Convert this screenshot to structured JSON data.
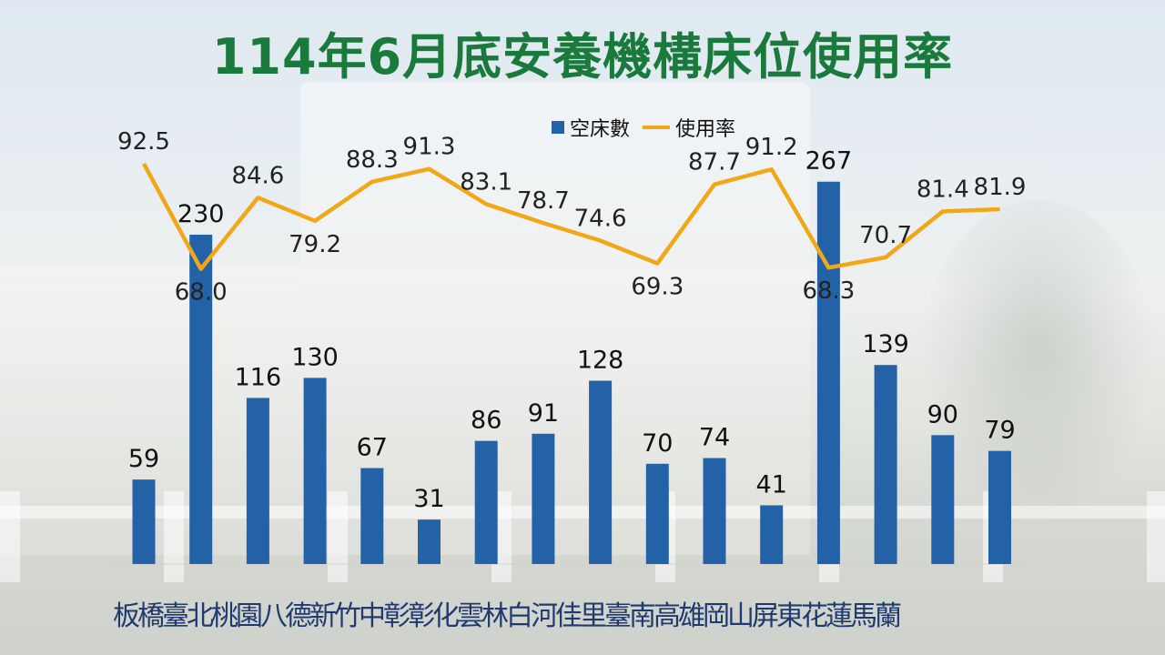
{
  "title": "114年6月底安養機構床位使用率",
  "category_text": "板橋臺北桃園八德新竹中彰彰化雲林白河佳里臺南高雄岡山屏東花蓮馬蘭",
  "chart_data": {
    "type": "bar",
    "categories": [
      "板橋",
      "臺北",
      "桃園",
      "八德",
      "新竹",
      "中彰",
      "彰化",
      "雲林",
      "白河",
      "佳里",
      "臺南",
      "高雄",
      "岡山",
      "屏東",
      "花蓮",
      "馬蘭"
    ],
    "series": [
      {
        "name": "空床數",
        "type": "bar",
        "color": "#2462a8",
        "values": [
          59,
          230,
          116,
          130,
          67,
          31,
          86,
          91,
          128,
          70,
          74,
          41,
          267,
          139,
          90,
          79
        ]
      },
      {
        "name": "使用率",
        "type": "line",
        "color": "#f0a818",
        "values": [
          92.5,
          68.0,
          84.6,
          79.2,
          88.3,
          91.3,
          83.1,
          78.7,
          74.6,
          69.3,
          87.7,
          91.2,
          68.3,
          70.7,
          81.4,
          81.9
        ]
      }
    ],
    "bar_labels": [
      "59",
      "230",
      "116",
      "130",
      "67",
      "31",
      "86",
      "91",
      "128",
      "70",
      "74",
      "41",
      "267",
      "139",
      "90",
      "79"
    ],
    "line_labels": [
      "92.5",
      "68.0",
      "84.6",
      "79.2",
      "88.3",
      "91.3",
      "83.1",
      "78.7",
      "74.6",
      "69.3",
      "87.7",
      "91.2",
      "68.3",
      "70.7",
      "81.4",
      "81.9"
    ],
    "ylim_bar": [
      0,
      280
    ],
    "ylim_line": [
      63,
      105
    ],
    "legend_position": "top-center",
    "grid": false
  }
}
